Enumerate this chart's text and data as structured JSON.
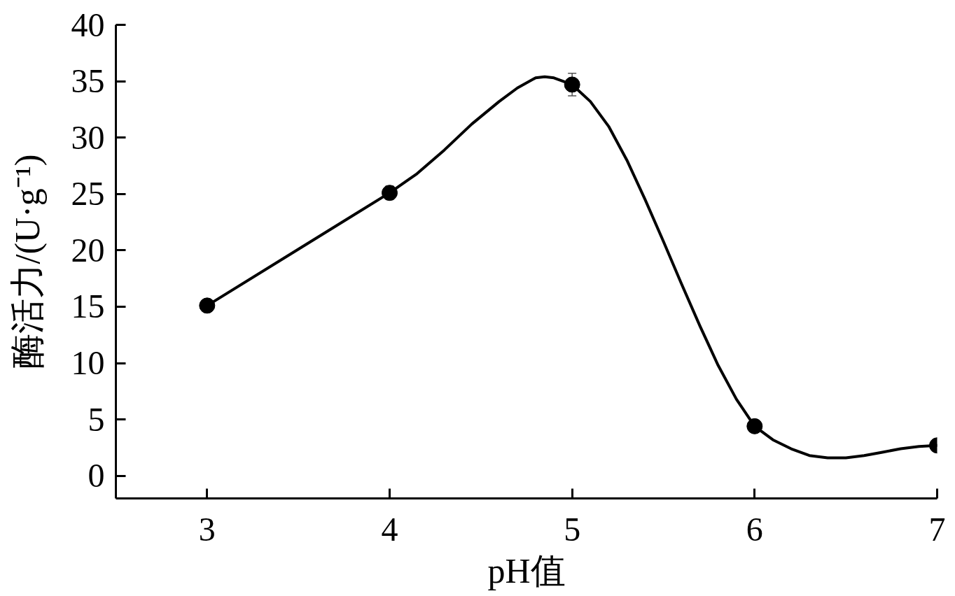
{
  "chart_data": {
    "type": "line",
    "xlabel": "pH值",
    "ylabel": "酶活力/(U·g⁻¹)",
    "x": [
      3,
      4,
      5,
      6,
      7
    ],
    "series": [
      {
        "type": "scatter",
        "color": "#000000",
        "marker": "circle",
        "values": [
          15.1,
          25.1,
          34.7,
          4.4,
          2.7
        ],
        "errors": [
          null,
          0.6,
          1.0,
          null,
          null
        ]
      },
      {
        "color": "#000000",
        "marker": "none",
        "x": [
          3.0,
          3.5,
          4.0,
          4.15,
          4.3,
          4.45,
          4.6,
          4.7,
          4.8,
          4.85,
          4.9,
          5.0,
          5.1,
          5.2,
          5.3,
          5.4,
          5.5,
          5.6,
          5.7,
          5.8,
          5.9,
          6.0,
          6.1,
          6.2,
          6.3,
          6.4,
          6.5,
          6.6,
          6.7,
          6.8,
          6.9,
          7.0
        ],
        "values": [
          15.1,
          20.1,
          25.1,
          26.8,
          28.9,
          31.2,
          33.2,
          34.4,
          35.3,
          35.4,
          35.3,
          34.7,
          33.2,
          31.0,
          28.0,
          24.5,
          20.8,
          17.0,
          13.3,
          9.8,
          6.8,
          4.4,
          3.2,
          2.4,
          1.8,
          1.6,
          1.6,
          1.8,
          2.1,
          2.4,
          2.6,
          2.7
        ]
      }
    ],
    "xlim": [
      2.5,
      7
    ],
    "ylim": [
      -2,
      40
    ],
    "xticks": [
      3,
      4,
      5,
      6,
      7
    ],
    "yticks": [
      0,
      5,
      10,
      15,
      20,
      25,
      30,
      35,
      40
    ],
    "line_style": "solid",
    "grid": false
  }
}
